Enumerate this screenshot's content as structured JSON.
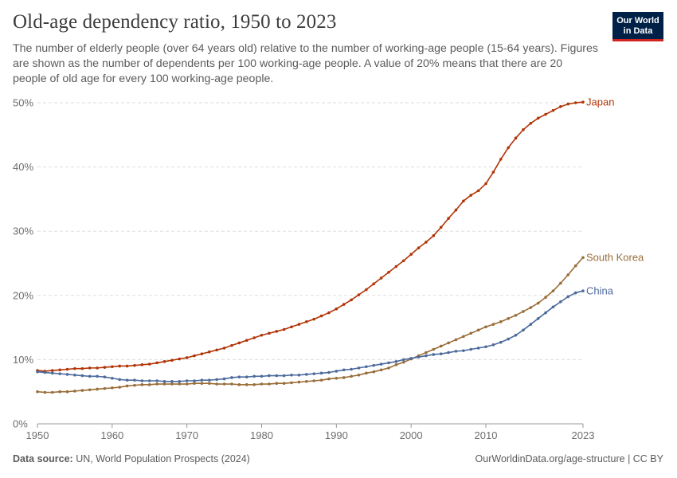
{
  "header": {
    "title": "Old-age dependency ratio, 1950 to 2023",
    "subtitle": "The number of elderly people (over 64 years old) relative to the number of working-age people (15-64 years). Figures are shown as the number of dependents per 100 working-age people. A value of 20% means that there are 20 people of old age for every 100 working-age people."
  },
  "logo": {
    "line1": "Our World",
    "line2": "in Data"
  },
  "footer": {
    "source_label": "Data source:",
    "source_text": "UN, World Population Prospects (2024)",
    "url": "OurWorldinData.org/age-structure | CC BY"
  },
  "chart_data": {
    "type": "line",
    "title": "Old-age dependency ratio, 1950 to 2023",
    "xlabel": "",
    "ylabel": "",
    "xlim": [
      1950,
      2023
    ],
    "ylim": [
      0,
      50
    ],
    "y_ticks": [
      0,
      10,
      20,
      30,
      40,
      50
    ],
    "y_tick_labels": [
      "0%",
      "10%",
      "20%",
      "30%",
      "40%",
      "50%"
    ],
    "x_ticks": [
      1950,
      1960,
      1970,
      1980,
      1990,
      2000,
      2010,
      2023
    ],
    "x_tick_labels": [
      "1950",
      "1960",
      "1970",
      "1980",
      "1990",
      "2000",
      "2010",
      "2023"
    ],
    "grid": "horizontal dashed",
    "legend": "labels at line ends (right)",
    "x_start": 1950,
    "series": [
      {
        "name": "Japan",
        "color": "#b13507",
        "values": [
          8.3,
          8.2,
          8.3,
          8.4,
          8.5,
          8.6,
          8.6,
          8.7,
          8.7,
          8.8,
          8.9,
          9.0,
          9.0,
          9.1,
          9.2,
          9.3,
          9.5,
          9.7,
          9.9,
          10.1,
          10.3,
          10.6,
          10.9,
          11.2,
          11.5,
          11.8,
          12.2,
          12.6,
          13.0,
          13.4,
          13.8,
          14.1,
          14.4,
          14.7,
          15.1,
          15.5,
          15.9,
          16.3,
          16.8,
          17.3,
          17.9,
          18.6,
          19.3,
          20.1,
          20.9,
          21.8,
          22.7,
          23.6,
          24.5,
          25.4,
          26.4,
          27.4,
          28.3,
          29.3,
          30.6,
          32.0,
          33.3,
          34.7,
          35.6,
          36.3,
          37.4,
          39.2,
          41.2,
          43.0,
          44.5,
          45.8,
          46.8,
          47.6,
          48.2,
          48.8,
          49.4,
          49.8,
          50.0,
          50.1
        ]
      },
      {
        "name": "South Korea",
        "color": "#996d39",
        "values": [
          5.0,
          4.9,
          4.9,
          5.0,
          5.0,
          5.1,
          5.2,
          5.3,
          5.4,
          5.5,
          5.6,
          5.7,
          5.9,
          6.0,
          6.1,
          6.1,
          6.2,
          6.2,
          6.2,
          6.2,
          6.2,
          6.3,
          6.3,
          6.3,
          6.2,
          6.2,
          6.2,
          6.1,
          6.1,
          6.1,
          6.2,
          6.2,
          6.3,
          6.3,
          6.4,
          6.5,
          6.6,
          6.7,
          6.8,
          7.0,
          7.1,
          7.2,
          7.4,
          7.6,
          7.9,
          8.1,
          8.4,
          8.7,
          9.2,
          9.6,
          10.1,
          10.6,
          11.1,
          11.6,
          12.1,
          12.6,
          13.1,
          13.6,
          14.1,
          14.6,
          15.1,
          15.5,
          15.9,
          16.4,
          16.9,
          17.5,
          18.1,
          18.8,
          19.7,
          20.7,
          21.9,
          23.2,
          24.6,
          25.9
        ]
      },
      {
        "name": "China",
        "color": "#4c6a9c",
        "values": [
          8.1,
          8.0,
          7.9,
          7.8,
          7.7,
          7.6,
          7.5,
          7.4,
          7.4,
          7.3,
          7.1,
          6.9,
          6.8,
          6.8,
          6.7,
          6.7,
          6.7,
          6.6,
          6.6,
          6.6,
          6.7,
          6.7,
          6.8,
          6.8,
          6.9,
          7.0,
          7.2,
          7.3,
          7.3,
          7.4,
          7.4,
          7.5,
          7.5,
          7.5,
          7.6,
          7.6,
          7.7,
          7.8,
          7.9,
          8.0,
          8.2,
          8.4,
          8.5,
          8.7,
          8.9,
          9.1,
          9.3,
          9.5,
          9.7,
          10.0,
          10.2,
          10.4,
          10.6,
          10.8,
          10.9,
          11.1,
          11.3,
          11.4,
          11.6,
          11.8,
          12.0,
          12.3,
          12.7,
          13.2,
          13.8,
          14.6,
          15.5,
          16.4,
          17.3,
          18.2,
          19.0,
          19.8,
          20.4,
          20.7
        ]
      }
    ]
  }
}
